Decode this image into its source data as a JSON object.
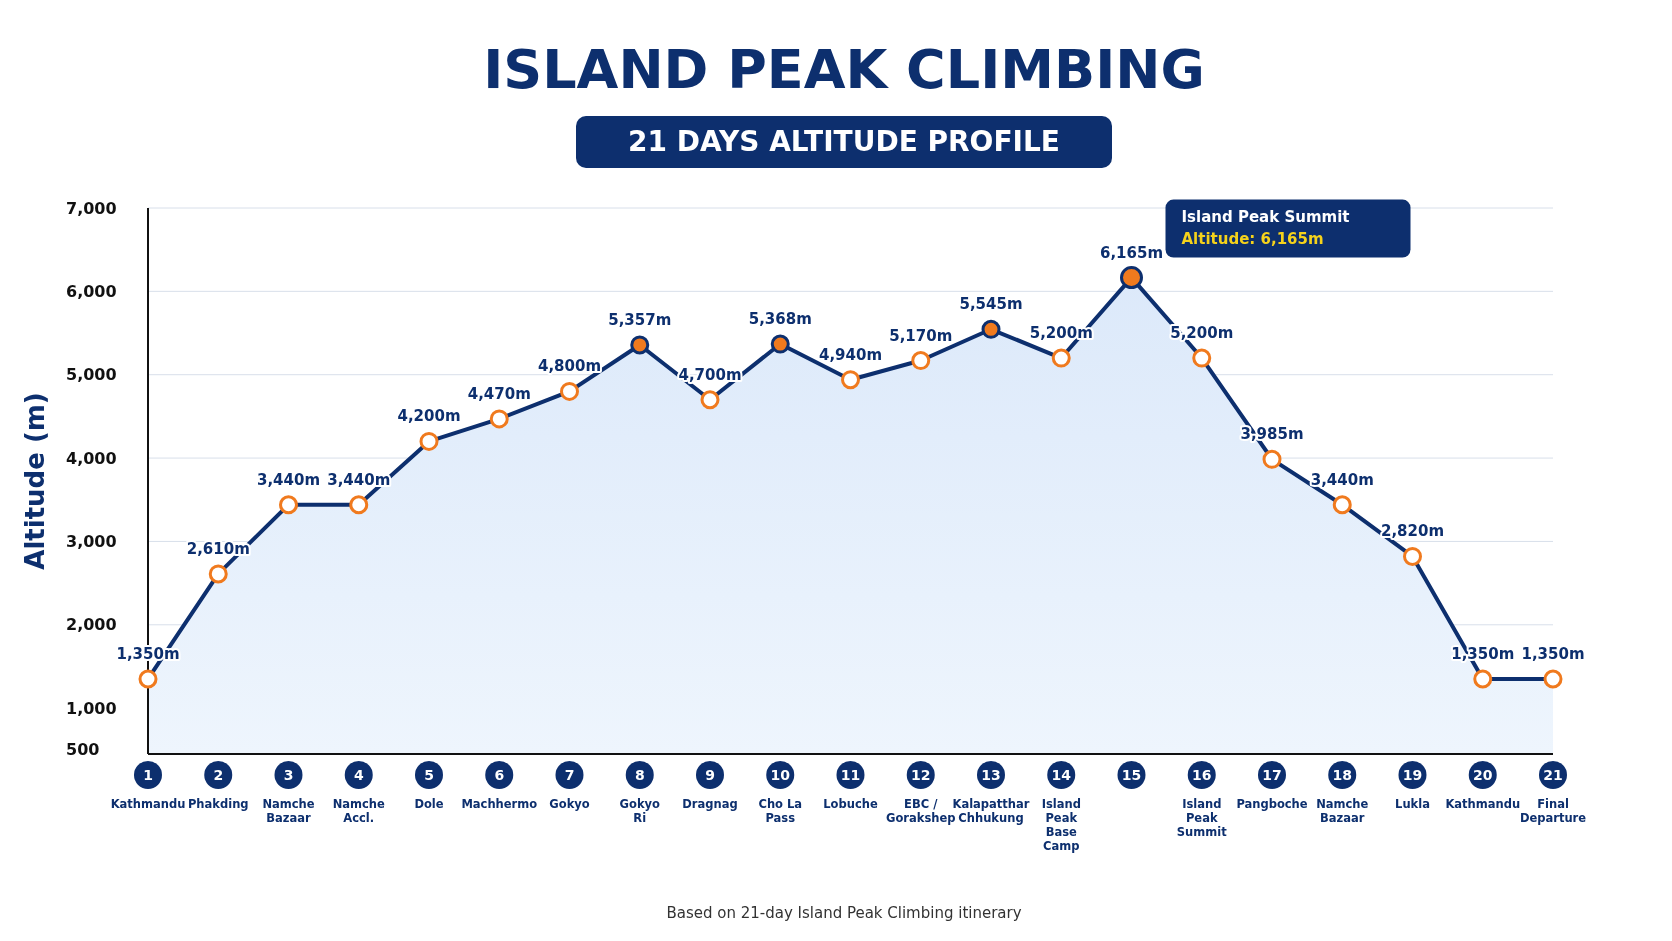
{
  "chart_data": {
    "type": "area",
    "title": "ISLAND PEAK CLIMBING",
    "subtitle": "21 DAYS ALTITUDE PROFILE",
    "ylabel": "Altitude (m)",
    "categories": [
      "Kathmandu",
      "Phakding",
      "Namche Bazaar",
      "Namche Accl.",
      "Dole",
      "Machhermo",
      "Gokyo",
      "Gokyo Ri",
      "Dragnag",
      "Cho La Pass",
      "Lobuche",
      "EBC / Gorakshep",
      "Kalapatthar Chhukung",
      "Island Peak Base Camp",
      null,
      "Island Peak Summit",
      "Pangboche",
      "Namche Bazaar",
      "Lukla",
      "Kathmandu",
      "Final Departure"
    ],
    "series": [
      {
        "color": "#0d2f6e",
        "colors": [
          "#ffffff",
          "#ffffff",
          "#ffffff",
          "#ffffff",
          "#ffffff",
          "#ffffff",
          "#ffffff",
          "#f07a1e",
          "#ffffff",
          "#f07a1e",
          "#ffffff",
          "#ffffff",
          "#f07a1e",
          "#ffffff",
          "#f07a1e",
          "#ffffff",
          "#ffffff",
          "#ffffff",
          "#ffffff",
          "#ffffff",
          "#ffffff"
        ],
        "values": [
          1350,
          2610,
          3440,
          3440,
          4200,
          4470,
          4800,
          5357,
          4700,
          5368,
          4940,
          5170,
          5545,
          5200,
          6165,
          5200,
          3985,
          3440,
          2820,
          1350,
          1350
        ]
      }
    ],
    "value_labels": [
      "1,350m",
      "2,610m",
      "3,440m",
      "3,440m",
      "4,200m",
      "4,470m",
      "4,800m",
      "5,357m",
      "4,700m",
      "5,368m",
      "4,940m",
      "5,170m",
      "5,545m",
      "5,200m",
      "6,165m",
      "5,200m",
      "3,985m",
      "3,440m",
      "2,820m",
      "1,350m",
      "1,350m"
    ],
    "ylim": [
      450,
      7000
    ],
    "yticks": [
      500,
      {
        "value": 1000,
        "label": "1,000"
      },
      {
        "value": 2000,
        "label": "2,000"
      },
      {
        "value": 3000,
        "label": "3,000"
      },
      {
        "value": 4000,
        "label": "4,000"
      },
      {
        "value": 5000,
        "label": "5,000"
      },
      {
        "value": 6000,
        "label": "6,000"
      },
      {
        "value": 7000,
        "label": "7,000"
      }
    ],
    "grid": "y",
    "marker": "circle",
    "annotations": [
      "1",
      "2",
      "3",
      "4",
      "5",
      "6",
      "7",
      "8",
      "9",
      "10",
      "11",
      "12",
      "13",
      "14",
      "15",
      "16",
      "17",
      "18",
      "19",
      "20",
      "21",
      "Island Peak Summit",
      "Altitude: 6,165m",
      "Based on 21-day Island Peak Climbing itinerary"
    ]
  }
}
